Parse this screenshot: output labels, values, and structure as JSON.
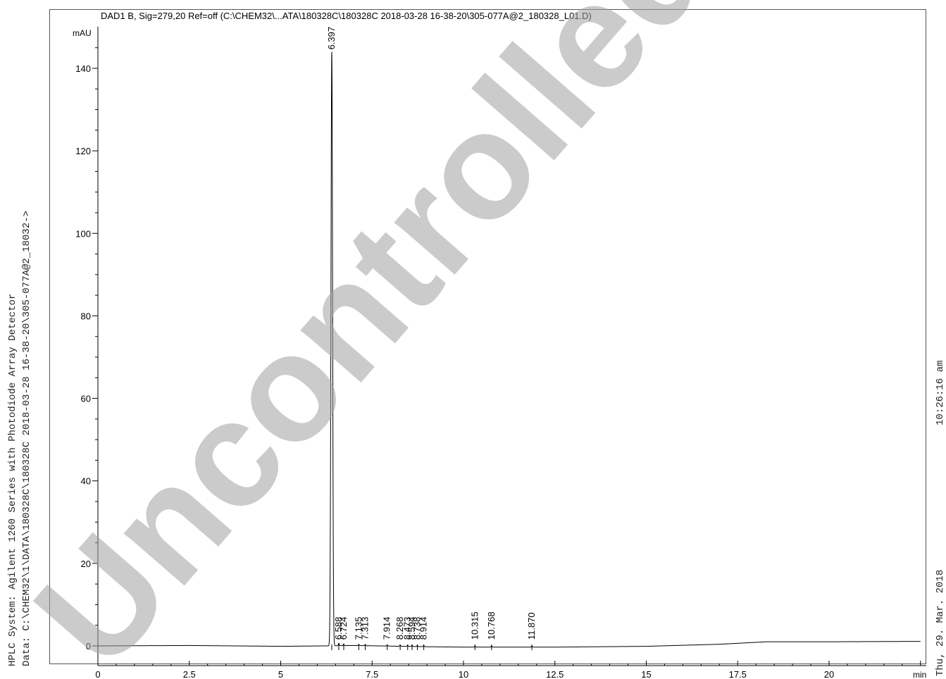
{
  "side": {
    "line1": "HPLC System:  Agilent 1260 Series with Photodiode Array Detector",
    "line2": "Data: C:\\CHEM32\\1\\DATA\\180328C\\180328C 2018-03-28 16-38-20\\305-077A@2_18032->",
    "printed_time": "10:26:16 am",
    "printed_date": "Thu, 29. Mar. 2018"
  },
  "watermark": "Uncontrolled",
  "chart_data": {
    "type": "line",
    "title": "DAD1 B, Sig=279,20 Ref=off (C:\\CHEM32\\...ATA\\180328C\\180328C 2018-03-28 16-38-20\\305-077A@2_180328_L01.D)",
    "ylabel": "mAU",
    "xlabel": "min",
    "xlim": [
      0,
      22.5
    ],
    "ylim": [
      -3,
      146
    ],
    "x_ticks": [
      0,
      2.5,
      5,
      7.5,
      10,
      12.5,
      15,
      17.5,
      20
    ],
    "x_tick_labels": [
      "0",
      "2.5",
      "5",
      "7.5",
      "10",
      "12.5",
      "15",
      "17.5",
      "20"
    ],
    "y_ticks": [
      0,
      20,
      40,
      60,
      80,
      100,
      120,
      140
    ],
    "y_tick_labels": [
      "0",
      "20",
      "40",
      "60",
      "80",
      "100",
      "120",
      "140"
    ],
    "peaks": [
      {
        "rt": 6.397,
        "label": "6.397",
        "height": 144.0
      },
      {
        "rt": 6.588,
        "label": "6.588",
        "height": 0.6
      },
      {
        "rt": 6.724,
        "label": "6.724",
        "height": 0.4
      },
      {
        "rt": 7.135,
        "label": "7.135",
        "height": 0.3
      },
      {
        "rt": 7.313,
        "label": "7.313",
        "height": 0.3
      },
      {
        "rt": 7.914,
        "label": "7.914",
        "height": 0.3
      },
      {
        "rt": 8.268,
        "label": "8.268",
        "height": 0.3
      },
      {
        "rt": 8.473,
        "label": "8.473",
        "height": 0.3
      },
      {
        "rt": 8.594,
        "label": "8.594",
        "height": 0.3
      },
      {
        "rt": 8.738,
        "label": "8.738",
        "height": 0.3
      },
      {
        "rt": 8.914,
        "label": "8.914",
        "height": 0.3
      },
      {
        "rt": 10.315,
        "label": "10.315",
        "height": 0.3
      },
      {
        "rt": 10.768,
        "label": "10.768",
        "height": 0.3
      },
      {
        "rt": 11.87,
        "label": "11.870",
        "height": 0.3
      }
    ],
    "baseline": [
      [
        0,
        0.0
      ],
      [
        2.5,
        0.1
      ],
      [
        5,
        -0.1
      ],
      [
        6.2,
        0.0
      ],
      [
        7.0,
        0.1
      ],
      [
        9.0,
        -0.2
      ],
      [
        10.0,
        -0.3
      ],
      [
        12.5,
        -0.3
      ],
      [
        15,
        -0.1
      ],
      [
        17.0,
        0.4
      ],
      [
        18.3,
        1.0
      ],
      [
        20,
        1.0
      ],
      [
        22.5,
        1.1
      ]
    ]
  }
}
